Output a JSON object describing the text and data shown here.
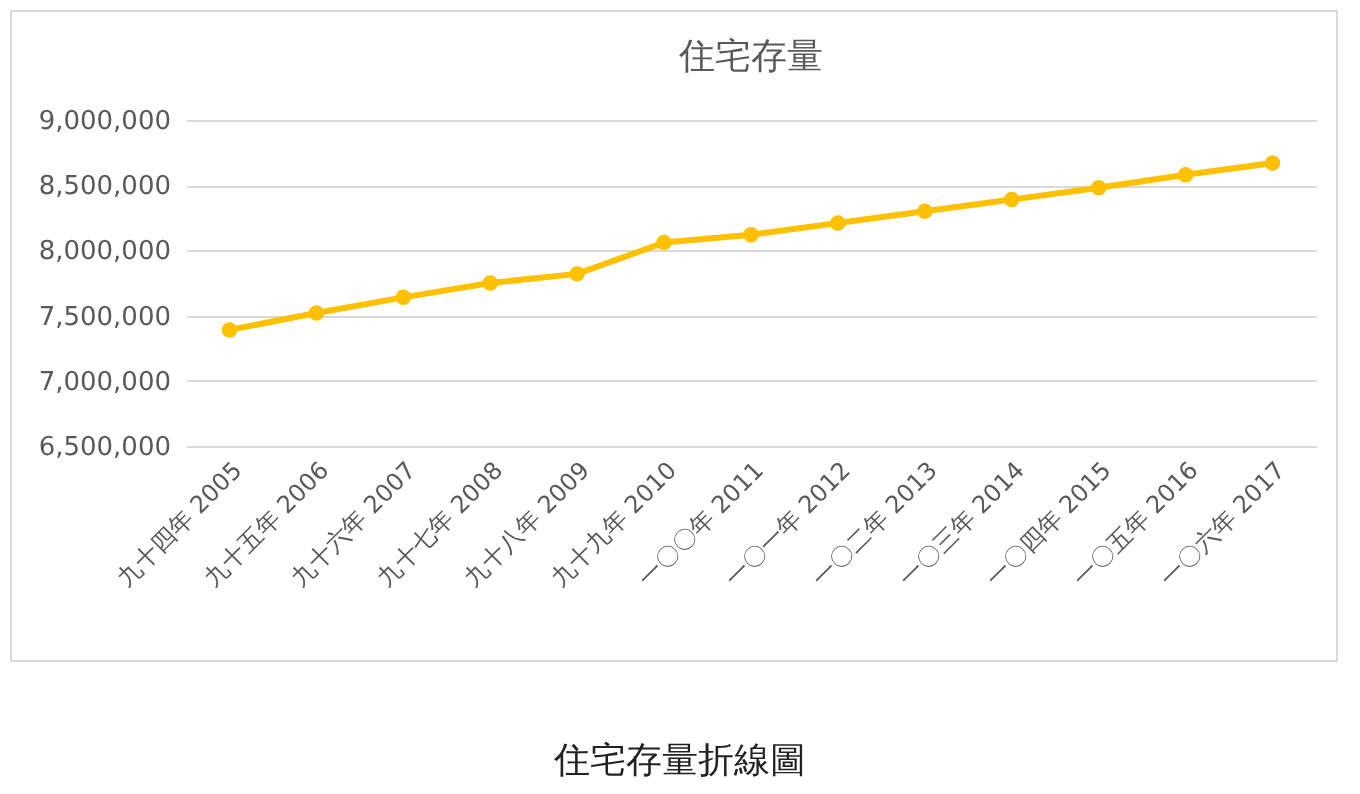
{
  "chart_data": {
    "type": "line",
    "title": "住宅存量",
    "categories": [
      "九十四年 2005",
      "九十五年 2006",
      "九十六年 2007",
      "九十七年 2008",
      "九十八年 2009",
      "九十九年 2010",
      "一〇〇年 2011",
      "一〇一年 2012",
      "一〇二年 2013",
      "一〇三年 2014",
      "一〇四年 2015",
      "一〇五年 2016",
      "一〇六年 2017"
    ],
    "series": [
      {
        "color": "#ffc000",
        "values": [
          7390000,
          7520000,
          7640000,
          7750000,
          7820000,
          8060000,
          8120000,
          8210000,
          8300000,
          8390000,
          8480000,
          8580000,
          8670000
        ]
      }
    ],
    "ylim": [
      6500000,
      9000000
    ],
    "yticks": [
      {
        "value": 6500000,
        "label": "6,500,000"
      },
      {
        "value": 7000000,
        "label": "7,000,000"
      },
      {
        "value": 7500000,
        "label": "7,500,000"
      },
      {
        "value": 8000000,
        "label": "8,000,000"
      },
      {
        "value": 8500000,
        "label": "8,500,000"
      },
      {
        "value": 9000000,
        "label": "9,000,000"
      }
    ],
    "grid": "y",
    "marker": "circle",
    "legend": false,
    "annotations": [
      "住宅存量折線圖"
    ]
  }
}
